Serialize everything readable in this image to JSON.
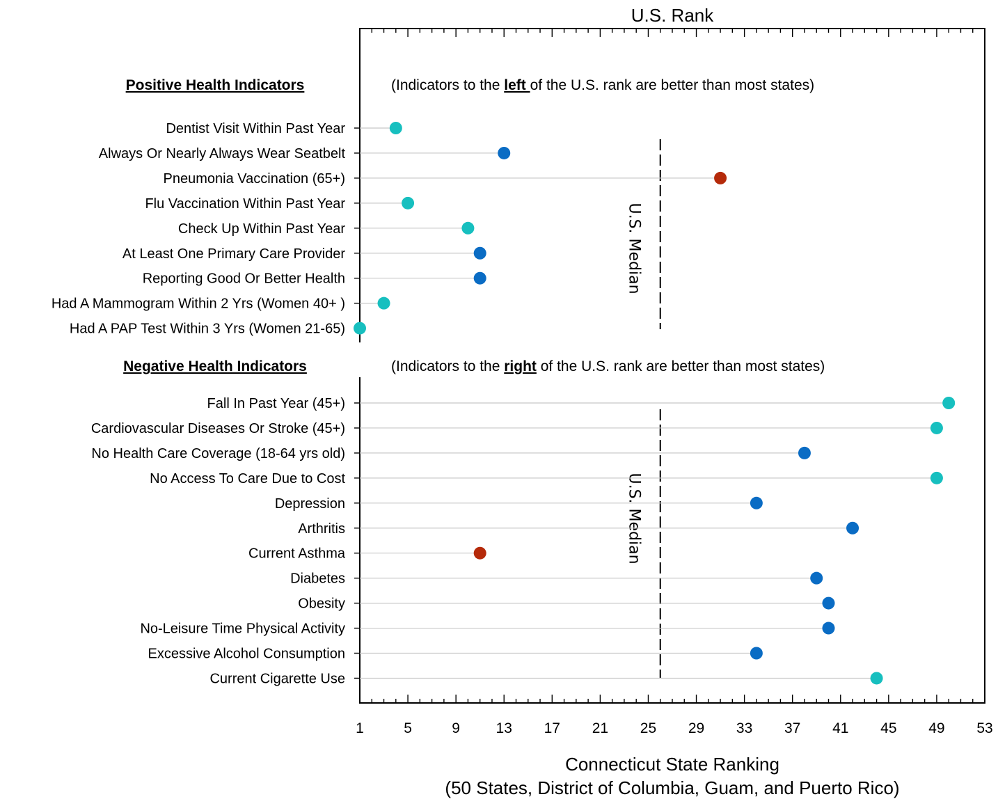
{
  "chart_data": {
    "type": "scatter",
    "subtype": "dot-plot",
    "top_title": "U.S. Rank",
    "xlabel": "Connecticut State Ranking",
    "xlabel_sub": "(50 States, District of Columbia, Guam, and Puerto Rico)",
    "xlim": [
      1,
      53
    ],
    "xticks": [
      1,
      5,
      9,
      13,
      17,
      21,
      25,
      29,
      33,
      37,
      41,
      45,
      49,
      53
    ],
    "grid": false,
    "colors": {
      "teal": "#17BFBF",
      "blue": "#0A6CC4",
      "red": "#B52A0A"
    },
    "median_label": "U.S. Median",
    "median_value": 26,
    "groups": [
      {
        "heading": "Positive Health Indicators",
        "note_pre": "(Indicators to the ",
        "note_key": "left ",
        "note_post": "of the U.S. rank are better than most states)",
        "items": [
          {
            "label": "Dentist Visit Within Past Year",
            "value": 4,
            "color": "teal"
          },
          {
            "label": "Always Or Nearly Always Wear Seatbelt",
            "value": 13,
            "color": "blue"
          },
          {
            "label": "Pneumonia Vaccination (65+)",
            "value": 31,
            "color": "red"
          },
          {
            "label": "Flu Vaccination Within Past Year",
            "value": 5,
            "color": "teal"
          },
          {
            "label": "Check Up Within Past Year",
            "value": 10,
            "color": "teal"
          },
          {
            "label": "At Least One Primary Care Provider",
            "value": 11,
            "color": "blue"
          },
          {
            "label": "Reporting Good Or Better Health",
            "value": 11,
            "color": "blue"
          },
          {
            "label": "Had A Mammogram Within 2 Yrs (Women 40+ )",
            "value": 3,
            "color": "teal"
          },
          {
            "label": "Had A PAP Test Within 3 Yrs (Women 21-65)",
            "value": 1,
            "color": "teal"
          }
        ]
      },
      {
        "heading": "Negative Health Indicators",
        "note_pre": "(Indicators to the ",
        "note_key": "right",
        "note_post": " of the U.S. rank are better than most states)",
        "items": [
          {
            "label": "Fall In Past Year (45+)",
            "value": 50,
            "color": "teal"
          },
          {
            "label": "Cardiovascular Diseases Or Stroke (45+)",
            "value": 49,
            "color": "teal"
          },
          {
            "label": "No Health Care Coverage (18-64 yrs old)",
            "value": 38,
            "color": "blue"
          },
          {
            "label": "No Access To Care Due to Cost",
            "value": 49,
            "color": "teal"
          },
          {
            "label": "Depression",
            "value": 34,
            "color": "blue"
          },
          {
            "label": "Arthritis",
            "value": 42,
            "color": "blue"
          },
          {
            "label": "Current Asthma",
            "value": 11,
            "color": "red"
          },
          {
            "label": "Diabetes",
            "value": 39,
            "color": "blue"
          },
          {
            "label": "Obesity",
            "value": 40,
            "color": "blue"
          },
          {
            "label": "No-Leisure Time Physical Activity",
            "value": 40,
            "color": "blue"
          },
          {
            "label": "Excessive Alcohol Consumption",
            "value": 34,
            "color": "blue"
          },
          {
            "label": "Current Cigarette Use",
            "value": 44,
            "color": "teal"
          }
        ]
      }
    ]
  }
}
